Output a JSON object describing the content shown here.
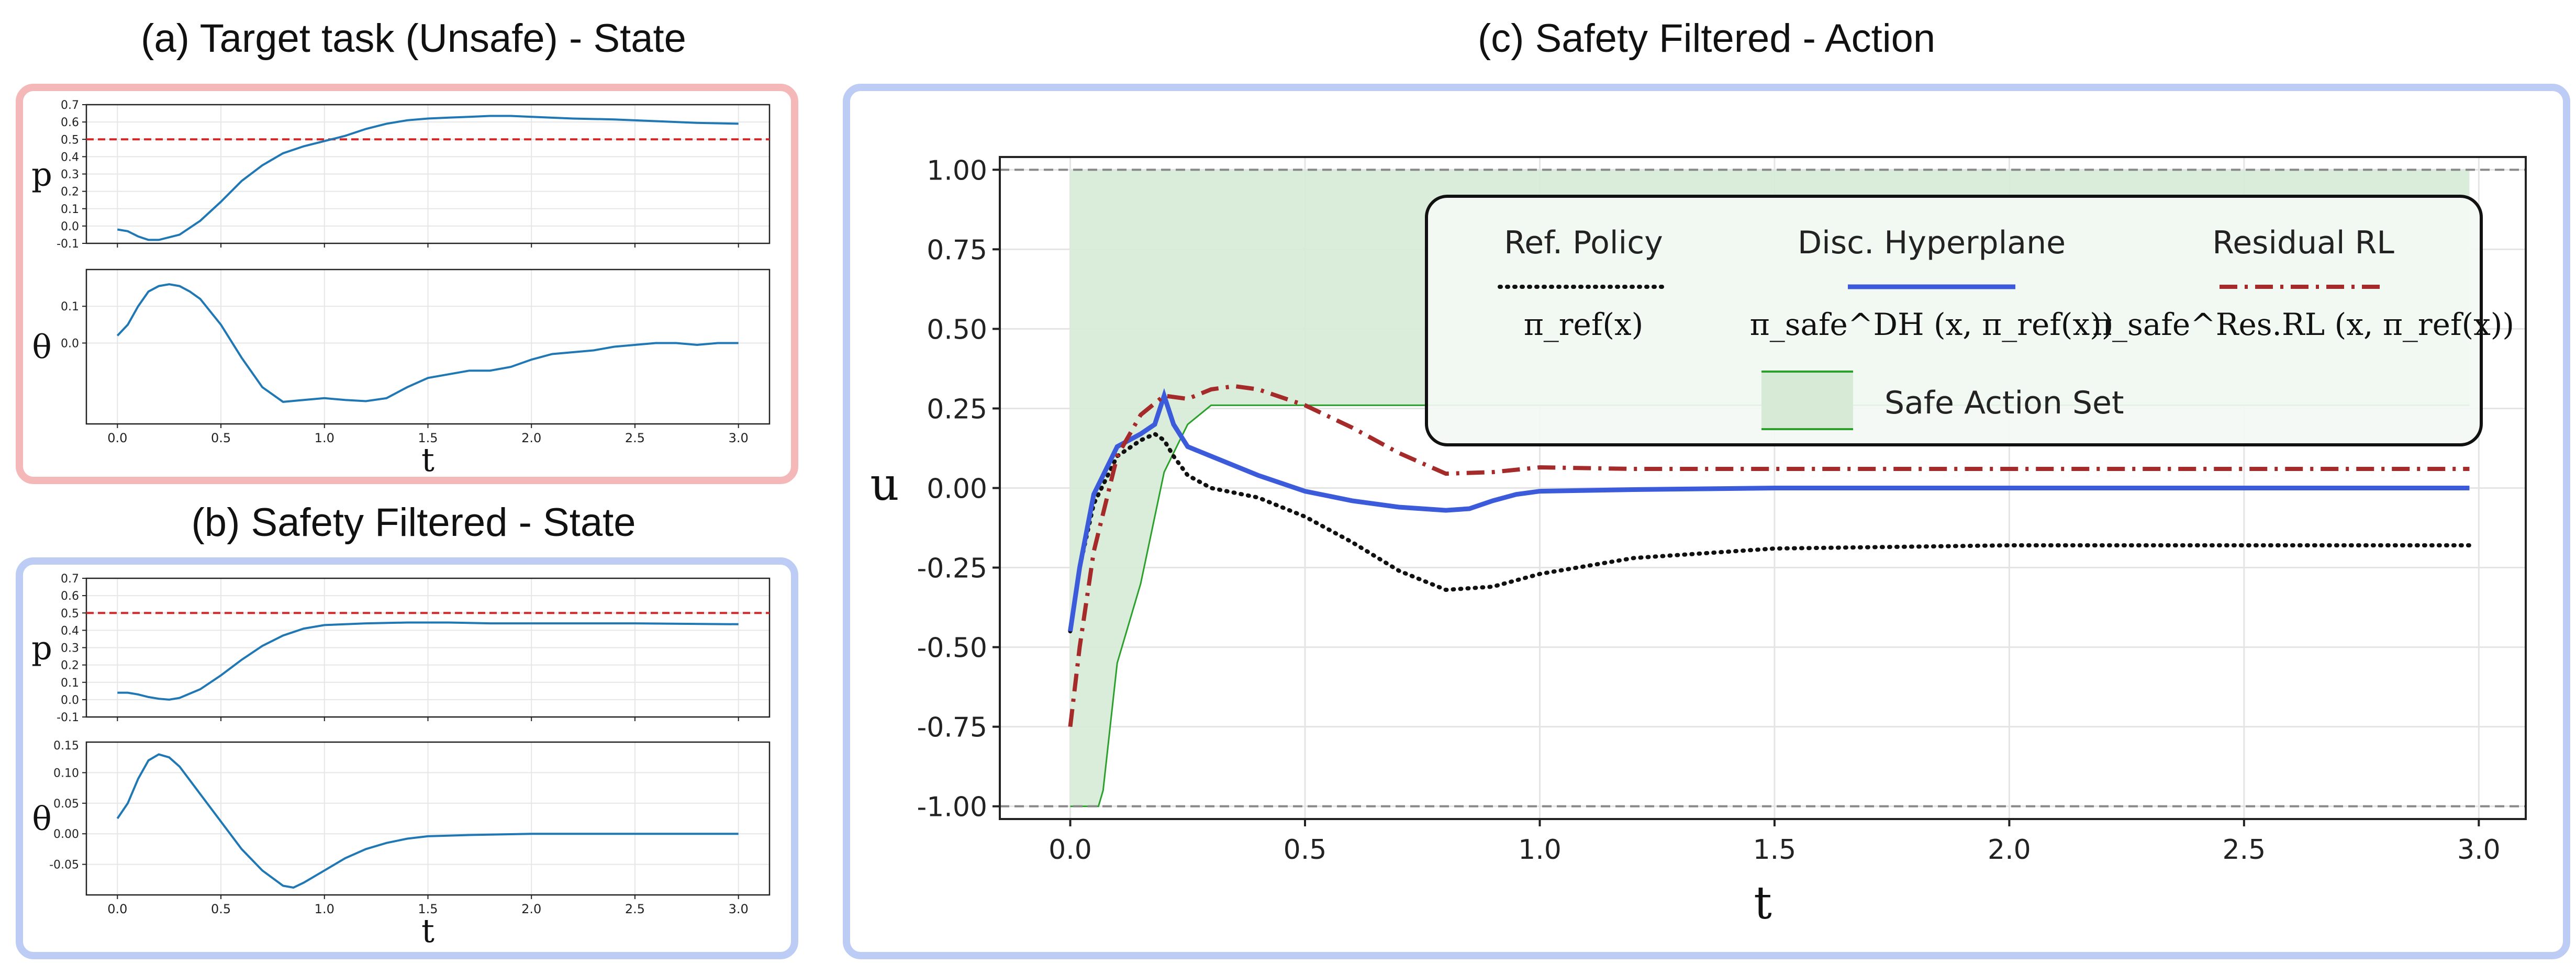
{
  "titles": {
    "a": "(a) Target task (Unsafe) - State",
    "b": "(b) Safety Filtered - State",
    "c": "(c) Safety Filtered - Action"
  },
  "colors": {
    "unsafe_border": "#f4b8b8",
    "safe_border": "#bcccf4",
    "state_line": "#1f77b4",
    "limit_line": "#d62728",
    "ref_policy": "#111111",
    "disc_hyperplane": "#3b5bdb",
    "residual_rl": "#a52a2a",
    "safe_set_fill": "#d6ead6",
    "safe_set_edge": "#2ca02c"
  },
  "chart_data": [
    {
      "id": "a",
      "type": "line",
      "title": "(a) Target task (Unsafe) - State",
      "xlabel": "t",
      "x_ticks": [
        "0.0",
        "0.5",
        "1.0",
        "1.5",
        "2.0",
        "2.5",
        "3.0"
      ],
      "xlim": [
        -0.15,
        3.15
      ],
      "grid": true,
      "subplots": [
        {
          "ylabel": "p",
          "ylim": [
            -0.1,
            0.7
          ],
          "y_ticks": [
            "0.7",
            "0.6",
            "0.5",
            "0.4",
            "0.3",
            "0.2",
            "0.1",
            "0.0",
            "-0.1"
          ],
          "y_tick_values": [
            0.7,
            0.6,
            0.5,
            0.4,
            0.3,
            0.2,
            0.1,
            0.0,
            -0.1
          ],
          "hline": 0.5,
          "x": [
            0.0,
            0.05,
            0.1,
            0.15,
            0.2,
            0.3,
            0.4,
            0.5,
            0.6,
            0.7,
            0.8,
            0.9,
            1.0,
            1.1,
            1.2,
            1.3,
            1.4,
            1.5,
            1.6,
            1.7,
            1.8,
            1.9,
            2.0,
            2.2,
            2.4,
            2.6,
            2.8,
            3.0
          ],
          "values": [
            -0.02,
            -0.03,
            -0.06,
            -0.08,
            -0.08,
            -0.05,
            0.03,
            0.14,
            0.26,
            0.35,
            0.42,
            0.46,
            0.49,
            0.52,
            0.56,
            0.59,
            0.61,
            0.62,
            0.625,
            0.63,
            0.635,
            0.635,
            0.63,
            0.62,
            0.615,
            0.605,
            0.595,
            0.59
          ]
        },
        {
          "ylabel": "θ",
          "ylim": [
            -0.22,
            0.2
          ],
          "y_ticks": [
            "0.1",
            "0.0"
          ],
          "y_tick_values": [
            0.1,
            0.0
          ],
          "x": [
            0.0,
            0.05,
            0.1,
            0.15,
            0.2,
            0.25,
            0.3,
            0.35,
            0.4,
            0.5,
            0.6,
            0.7,
            0.8,
            0.9,
            1.0,
            1.1,
            1.2,
            1.3,
            1.4,
            1.5,
            1.6,
            1.7,
            1.8,
            1.9,
            2.0,
            2.1,
            2.2,
            2.3,
            2.4,
            2.5,
            2.6,
            2.7,
            2.8,
            2.9,
            3.0
          ],
          "values": [
            0.02,
            0.05,
            0.1,
            0.14,
            0.155,
            0.16,
            0.155,
            0.14,
            0.12,
            0.05,
            -0.04,
            -0.12,
            -0.16,
            -0.155,
            -0.15,
            -0.155,
            -0.158,
            -0.15,
            -0.12,
            -0.095,
            -0.085,
            -0.075,
            -0.075,
            -0.065,
            -0.045,
            -0.03,
            -0.025,
            -0.02,
            -0.01,
            -0.005,
            0.0,
            0.0,
            -0.005,
            0.0,
            0.0
          ]
        }
      ]
    },
    {
      "id": "b",
      "type": "line",
      "title": "(b) Safety Filtered - State",
      "xlabel": "t",
      "x_ticks": [
        "0.0",
        "0.5",
        "1.0",
        "1.5",
        "2.0",
        "2.5",
        "3.0"
      ],
      "xlim": [
        -0.15,
        3.15
      ],
      "grid": true,
      "subplots": [
        {
          "ylabel": "p",
          "ylim": [
            -0.1,
            0.7
          ],
          "y_ticks": [
            "0.7",
            "0.6",
            "0.5",
            "0.4",
            "0.3",
            "0.2",
            "0.1",
            "0.0",
            "-0.1"
          ],
          "y_tick_values": [
            0.7,
            0.6,
            0.5,
            0.4,
            0.3,
            0.2,
            0.1,
            0.0,
            -0.1
          ],
          "hline": 0.5,
          "x": [
            0.0,
            0.05,
            0.1,
            0.15,
            0.2,
            0.25,
            0.3,
            0.4,
            0.5,
            0.6,
            0.7,
            0.8,
            0.9,
            1.0,
            1.2,
            1.4,
            1.6,
            1.8,
            2.0,
            2.5,
            3.0
          ],
          "values": [
            0.04,
            0.04,
            0.03,
            0.015,
            0.005,
            0.0,
            0.01,
            0.06,
            0.14,
            0.23,
            0.31,
            0.37,
            0.41,
            0.43,
            0.44,
            0.445,
            0.445,
            0.44,
            0.44,
            0.44,
            0.435
          ]
        },
        {
          "ylabel": "θ",
          "ylim": [
            -0.1,
            0.15
          ],
          "y_ticks": [
            "0.10",
            "0.05",
            "0.00",
            "-0.05"
          ],
          "y_tick_values": [
            0.1,
            0.05,
            0.0,
            -0.05
          ],
          "extra_y_tick": "0.15",
          "x": [
            0.0,
            0.05,
            0.1,
            0.15,
            0.2,
            0.25,
            0.3,
            0.4,
            0.5,
            0.6,
            0.7,
            0.8,
            0.85,
            0.9,
            1.0,
            1.1,
            1.2,
            1.3,
            1.4,
            1.5,
            1.7,
            2.0,
            2.5,
            3.0
          ],
          "values": [
            0.025,
            0.05,
            0.09,
            0.12,
            0.13,
            0.125,
            0.11,
            0.065,
            0.02,
            -0.025,
            -0.06,
            -0.085,
            -0.088,
            -0.08,
            -0.06,
            -0.04,
            -0.025,
            -0.015,
            -0.008,
            -0.004,
            -0.002,
            0.0,
            0.0,
            0.0
          ]
        }
      ]
    },
    {
      "id": "c",
      "type": "line",
      "title": "(c) Safety Filtered - Action",
      "xlabel": "t",
      "ylabel": "u",
      "x_ticks": [
        "0.0",
        "0.5",
        "1.0",
        "1.5",
        "2.0",
        "2.5",
        "3.0"
      ],
      "x_tick_values": [
        0,
        0.5,
        1,
        1.5,
        2,
        2.5,
        3
      ],
      "y_ticks": [
        "1.00",
        "0.75",
        "0.50",
        "0.25",
        "0.00",
        "-0.25",
        "-0.50",
        "-0.75",
        "-1.00"
      ],
      "y_tick_values": [
        1.0,
        0.75,
        0.5,
        0.25,
        0.0,
        -0.25,
        -0.5,
        -0.75,
        -1.0
      ],
      "xlim": [
        -0.15,
        3.1
      ],
      "ylim": [
        -1.04,
        1.04
      ],
      "hlines": [
        1.0,
        -1.0
      ],
      "grid": true,
      "legend_position": "top-right",
      "safe_action_set": {
        "label": "Safe Action Set",
        "x": [
          0.0,
          0.06,
          0.07,
          0.1,
          0.15,
          0.2,
          0.25,
          0.3,
          2.98
        ],
        "lower": [
          -1.0,
          -1.0,
          -0.95,
          -0.55,
          -0.3,
          0.05,
          0.2,
          0.26,
          0.26
        ],
        "upper": [
          1.0,
          1.0,
          1.0,
          1.0,
          1.0,
          1.0,
          1.0,
          1.0,
          1.0
        ]
      },
      "series": [
        {
          "name": "Ref. Policy",
          "formula": "π_ref(x)",
          "style": "dotted",
          "x": [
            0.0,
            0.02,
            0.05,
            0.1,
            0.15,
            0.18,
            0.2,
            0.22,
            0.25,
            0.3,
            0.4,
            0.5,
            0.6,
            0.7,
            0.8,
            0.9,
            1.0,
            1.2,
            1.5,
            2.0,
            2.5,
            2.98
          ],
          "values": [
            -0.45,
            -0.25,
            -0.05,
            0.1,
            0.15,
            0.17,
            0.15,
            0.1,
            0.04,
            0.0,
            -0.03,
            -0.09,
            -0.17,
            -0.26,
            -0.32,
            -0.31,
            -0.27,
            -0.22,
            -0.19,
            -0.18,
            -0.18,
            -0.18
          ]
        },
        {
          "name": "Disc. Hyperplane",
          "formula": "π_safe^DH (x, π_ref(x))",
          "style": "solid",
          "x": [
            0.0,
            0.02,
            0.05,
            0.1,
            0.15,
            0.18,
            0.2,
            0.22,
            0.25,
            0.3,
            0.4,
            0.5,
            0.6,
            0.7,
            0.8,
            0.85,
            0.9,
            0.95,
            1.0,
            1.2,
            1.5,
            2.0,
            2.5,
            2.98
          ],
          "values": [
            -0.45,
            -0.25,
            -0.02,
            0.13,
            0.17,
            0.2,
            0.29,
            0.2,
            0.13,
            0.1,
            0.04,
            -0.01,
            -0.04,
            -0.06,
            -0.07,
            -0.065,
            -0.04,
            -0.02,
            -0.01,
            -0.005,
            0.0,
            0.0,
            0.0,
            0.0
          ]
        },
        {
          "name": "Residual RL",
          "formula": "π_safe^Res.RL (x, π_ref(x))",
          "style": "dashdot",
          "x": [
            0.0,
            0.02,
            0.05,
            0.1,
            0.15,
            0.2,
            0.25,
            0.3,
            0.35,
            0.4,
            0.5,
            0.6,
            0.7,
            0.8,
            0.9,
            1.0,
            1.2,
            1.5,
            2.0,
            2.5,
            2.98
          ],
          "values": [
            -0.75,
            -0.5,
            -0.2,
            0.1,
            0.23,
            0.29,
            0.28,
            0.31,
            0.32,
            0.31,
            0.26,
            0.19,
            0.11,
            0.045,
            0.05,
            0.065,
            0.06,
            0.06,
            0.06,
            0.06,
            0.06
          ]
        }
      ]
    }
  ]
}
